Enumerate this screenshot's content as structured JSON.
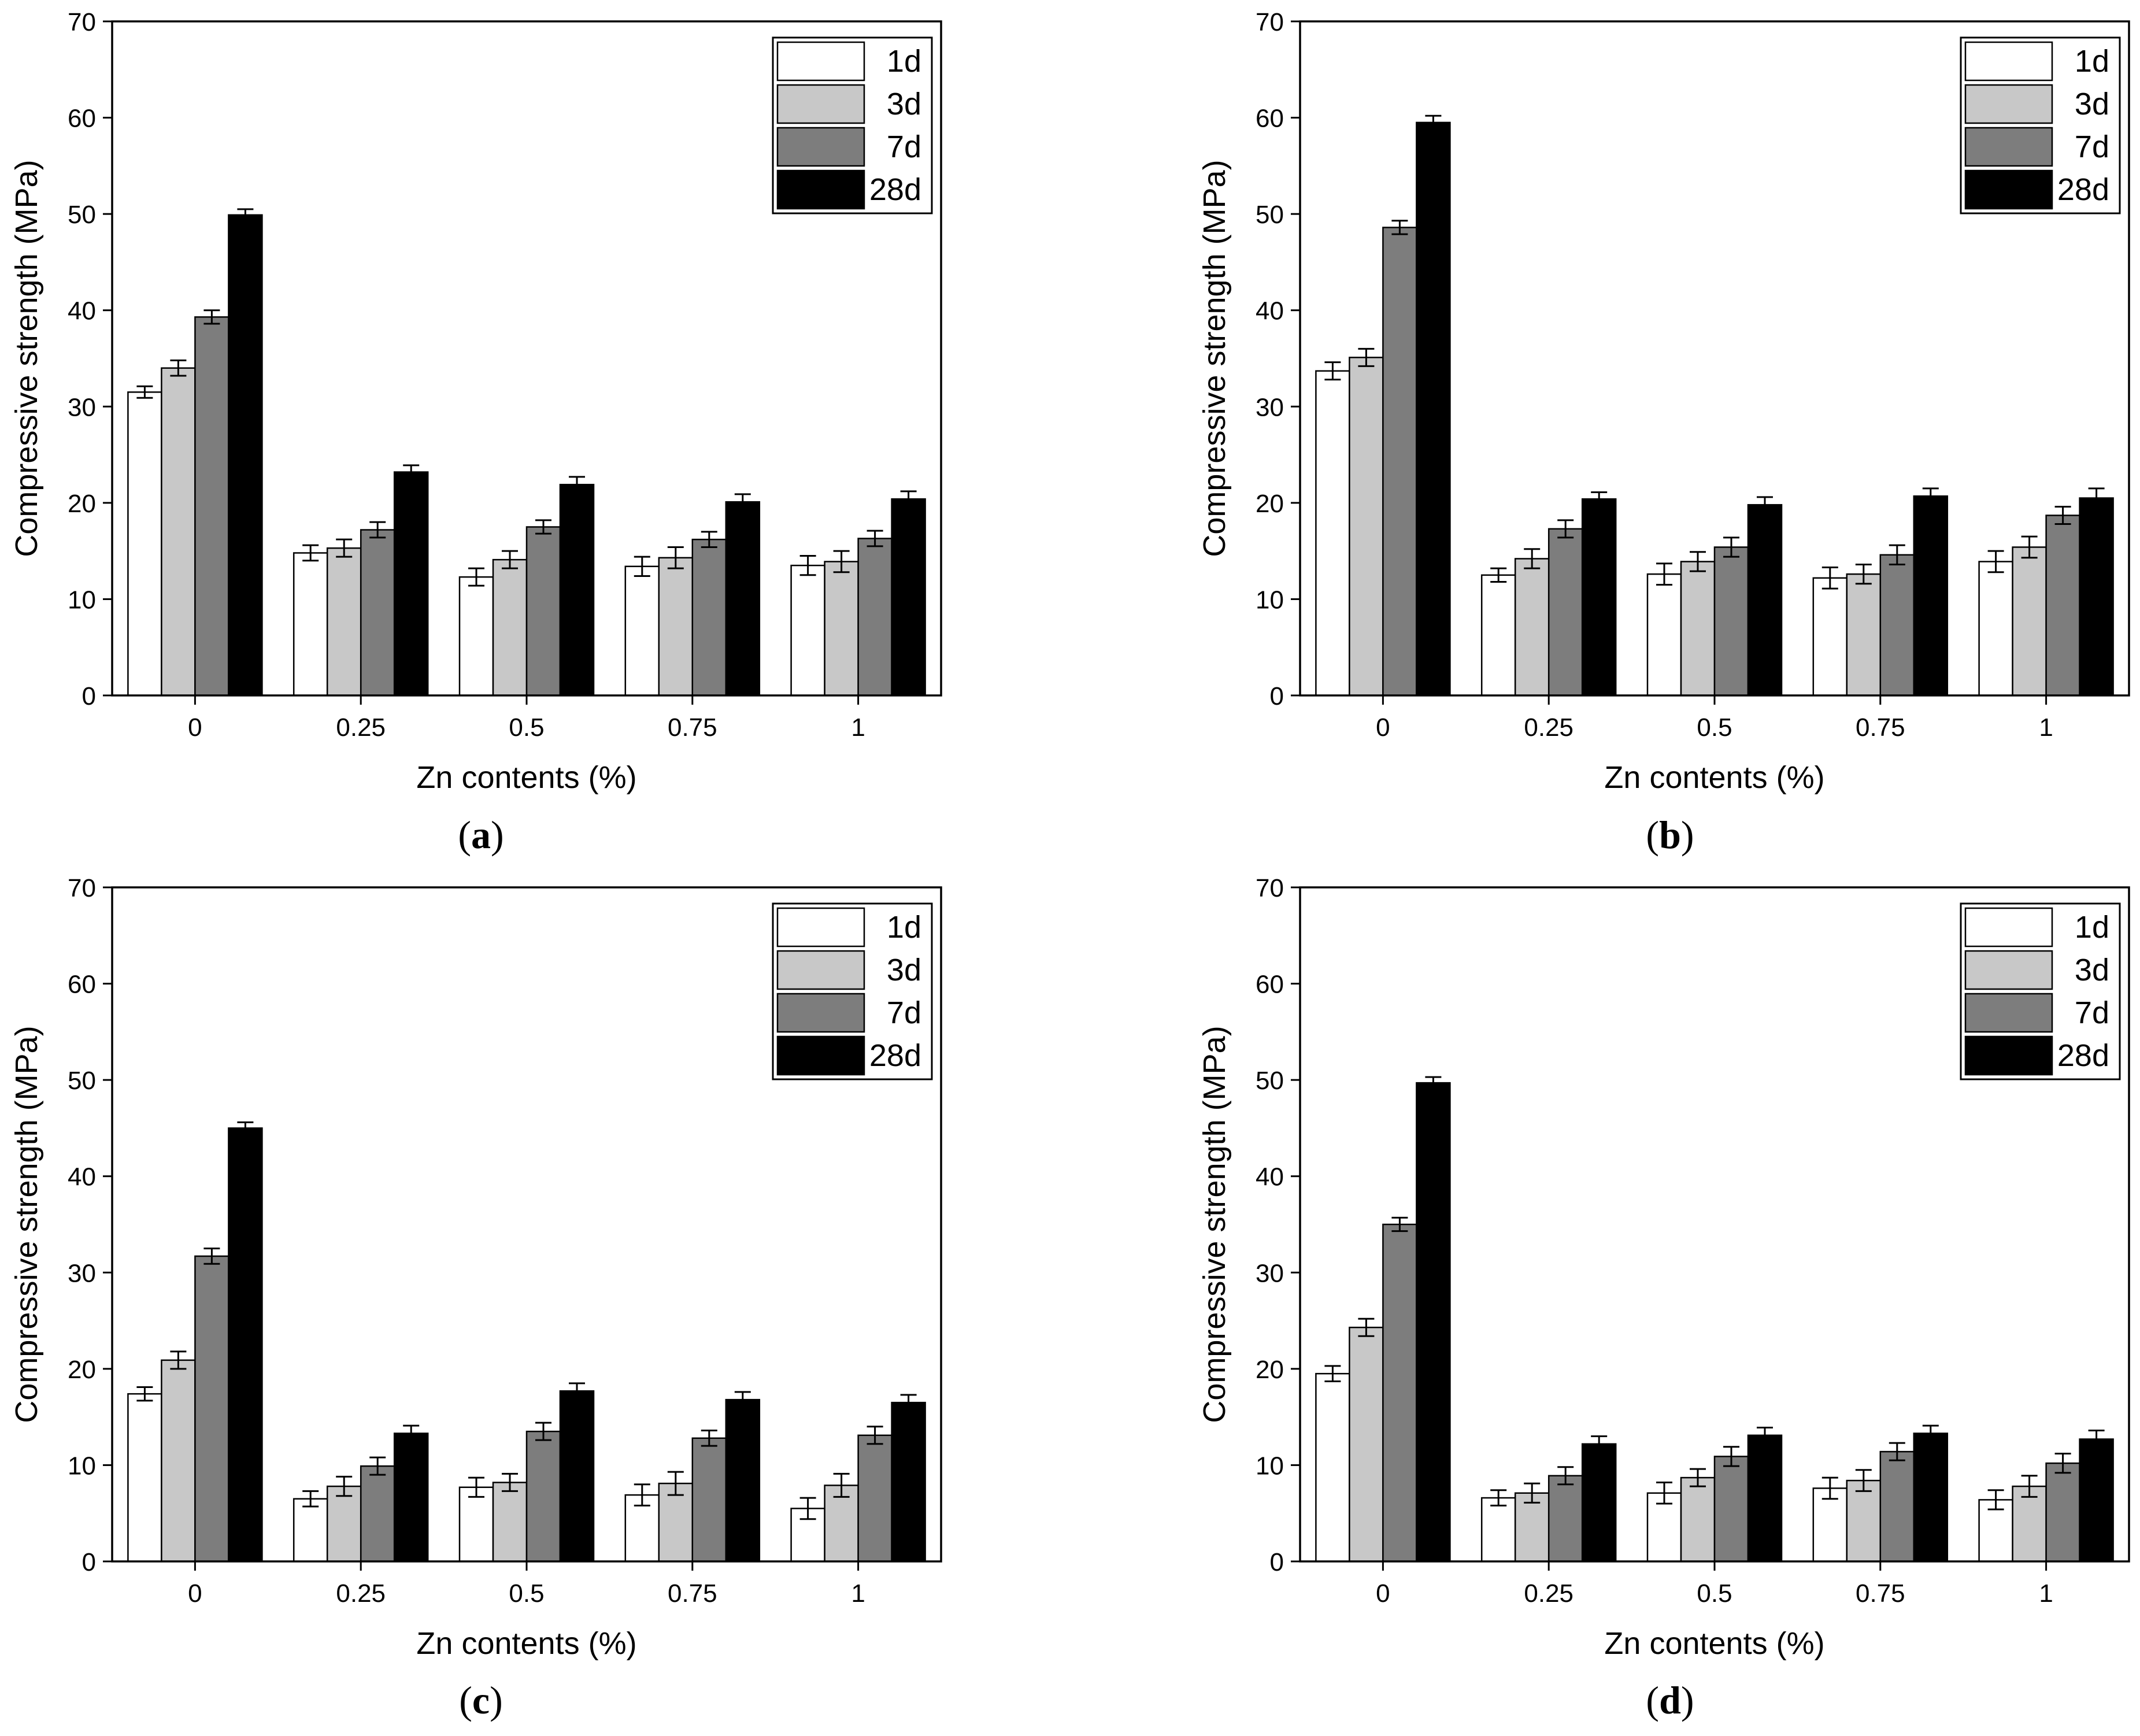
{
  "chart_data": [
    {
      "type": "bar",
      "panel": "a",
      "caption_open": "(",
      "caption_letter": "a",
      "caption_close": ")",
      "xlabel": "Zn contents (%)",
      "ylabel": "Compressive strength (MPa)",
      "ylim": [
        0,
        70
      ],
      "yticks": [
        0,
        10,
        20,
        30,
        40,
        50,
        60,
        70
      ],
      "categories": [
        "0",
        "0.25",
        "0.5",
        "0.75",
        "1"
      ],
      "legend_position": "top-right",
      "series": [
        {
          "name": "1d",
          "color": "#ffffff",
          "values": [
            31.5,
            14.8,
            12.3,
            13.4,
            13.5
          ],
          "errors": [
            0.6,
            0.8,
            0.9,
            1.0,
            1.0
          ]
        },
        {
          "name": "3d",
          "color": "#c8c8c8",
          "values": [
            34.0,
            15.3,
            14.1,
            14.3,
            13.9
          ],
          "errors": [
            0.8,
            0.9,
            0.9,
            1.1,
            1.1
          ]
        },
        {
          "name": "7d",
          "color": "#7d7d7d",
          "values": [
            39.3,
            17.2,
            17.5,
            16.2,
            16.3
          ],
          "errors": [
            0.7,
            0.8,
            0.7,
            0.8,
            0.8
          ]
        },
        {
          "name": "28d",
          "color": "#000000",
          "values": [
            49.9,
            23.2,
            21.9,
            20.1,
            20.4
          ],
          "errors": [
            0.6,
            0.7,
            0.8,
            0.8,
            0.8
          ]
        }
      ]
    },
    {
      "type": "bar",
      "panel": "b",
      "caption_open": "(",
      "caption_letter": "b",
      "caption_close": ")",
      "xlabel": "Zn contents (%)",
      "ylabel": "Compressive strength (MPa)",
      "ylim": [
        0,
        70
      ],
      "yticks": [
        0,
        10,
        20,
        30,
        40,
        50,
        60,
        70
      ],
      "categories": [
        "0",
        "0.25",
        "0.5",
        "0.75",
        "1"
      ],
      "legend_position": "top-right",
      "series": [
        {
          "name": "1d",
          "color": "#ffffff",
          "values": [
            33.7,
            12.5,
            12.6,
            12.2,
            13.9
          ],
          "errors": [
            0.9,
            0.7,
            1.1,
            1.1,
            1.1
          ]
        },
        {
          "name": "3d",
          "color": "#c8c8c8",
          "values": [
            35.1,
            14.2,
            13.9,
            12.6,
            15.4
          ],
          "errors": [
            0.9,
            1.0,
            1.0,
            1.0,
            1.1
          ]
        },
        {
          "name": "7d",
          "color": "#7d7d7d",
          "values": [
            48.6,
            17.3,
            15.4,
            14.6,
            18.7
          ],
          "errors": [
            0.7,
            0.9,
            1.0,
            1.0,
            0.9
          ]
        },
        {
          "name": "28d",
          "color": "#000000",
          "values": [
            59.5,
            20.4,
            19.8,
            20.7,
            20.5
          ],
          "errors": [
            0.7,
            0.7,
            0.8,
            0.8,
            1.0
          ]
        }
      ]
    },
    {
      "type": "bar",
      "panel": "c",
      "caption_open": "(",
      "caption_letter": "c",
      "caption_close": ")",
      "xlabel": "Zn contents (%)",
      "ylabel": "Compressive strength (MPa)",
      "ylim": [
        0,
        70
      ],
      "yticks": [
        0,
        10,
        20,
        30,
        40,
        50,
        60,
        70
      ],
      "categories": [
        "0",
        "0.25",
        "0.5",
        "0.75",
        "1"
      ],
      "legend_position": "top-right",
      "series": [
        {
          "name": "1d",
          "color": "#ffffff",
          "values": [
            17.4,
            6.5,
            7.7,
            6.9,
            5.5
          ],
          "errors": [
            0.7,
            0.8,
            1.0,
            1.1,
            1.1
          ]
        },
        {
          "name": "3d",
          "color": "#c8c8c8",
          "values": [
            20.9,
            7.8,
            8.2,
            8.1,
            7.9
          ],
          "errors": [
            0.9,
            1.0,
            0.9,
            1.2,
            1.2
          ]
        },
        {
          "name": "7d",
          "color": "#7d7d7d",
          "values": [
            31.7,
            9.9,
            13.5,
            12.8,
            13.1
          ],
          "errors": [
            0.8,
            0.9,
            0.9,
            0.8,
            0.9
          ]
        },
        {
          "name": "28d",
          "color": "#000000",
          "values": [
            45.0,
            13.3,
            17.7,
            16.8,
            16.5
          ],
          "errors": [
            0.6,
            0.8,
            0.8,
            0.8,
            0.8
          ]
        }
      ]
    },
    {
      "type": "bar",
      "panel": "d",
      "caption_open": "(",
      "caption_letter": "d",
      "caption_close": ")",
      "xlabel": "Zn contents (%)",
      "ylabel": "Compressive strength (MPa)",
      "ylim": [
        0,
        70
      ],
      "yticks": [
        0,
        10,
        20,
        30,
        40,
        50,
        60,
        70
      ],
      "categories": [
        "0",
        "0.25",
        "0.5",
        "0.75",
        "1"
      ],
      "legend_position": "top-right",
      "series": [
        {
          "name": "1d",
          "color": "#ffffff",
          "values": [
            19.5,
            6.6,
            7.1,
            7.6,
            6.4
          ],
          "errors": [
            0.8,
            0.8,
            1.1,
            1.1,
            1.0
          ]
        },
        {
          "name": "3d",
          "color": "#c8c8c8",
          "values": [
            24.3,
            7.1,
            8.7,
            8.4,
            7.8
          ],
          "errors": [
            0.9,
            1.0,
            0.9,
            1.1,
            1.1
          ]
        },
        {
          "name": "7d",
          "color": "#7d7d7d",
          "values": [
            35.0,
            8.9,
            10.9,
            11.4,
            10.2
          ],
          "errors": [
            0.7,
            0.9,
            1.0,
            0.9,
            1.0
          ]
        },
        {
          "name": "28d",
          "color": "#000000",
          "values": [
            49.7,
            12.2,
            13.1,
            13.3,
            12.7
          ],
          "errors": [
            0.6,
            0.8,
            0.8,
            0.8,
            0.9
          ]
        }
      ]
    }
  ]
}
